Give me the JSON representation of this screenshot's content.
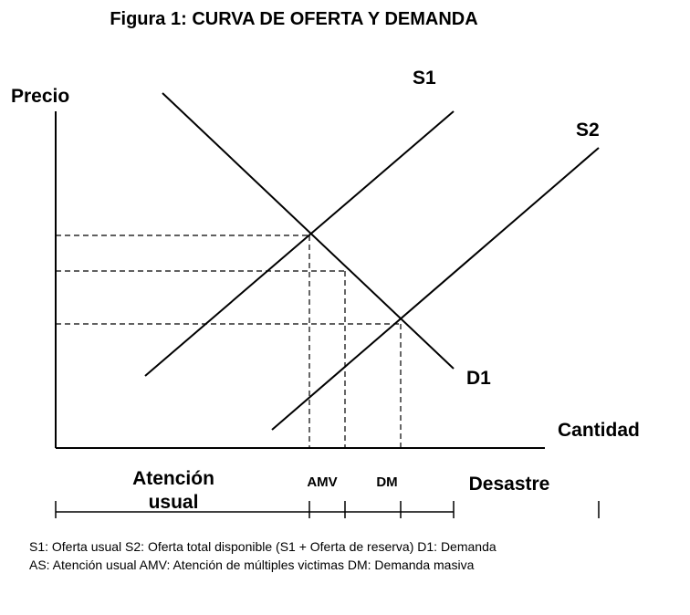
{
  "figure": {
    "title": "Figura 1: CURVA DE OFERTA Y DEMANDA",
    "y_axis_label": "Precio",
    "x_axis_label": "Cantidad",
    "curves": {
      "s1": "S1",
      "s2": "S2",
      "d1": "D1"
    },
    "zones": {
      "usual_line1": "Atención",
      "usual_line2": "usual",
      "amv": "AMV",
      "dm": "DM",
      "disaster": "Desastre"
    }
  },
  "legend": {
    "line1": "S1: Oferta usual S2: Oferta total disponible (S1 + Oferta de reserva) D1: Demanda",
    "line2": "AS:  Atención usual  AMV:  Atención de múltiples victimas    DM: Demanda masiva"
  }
}
